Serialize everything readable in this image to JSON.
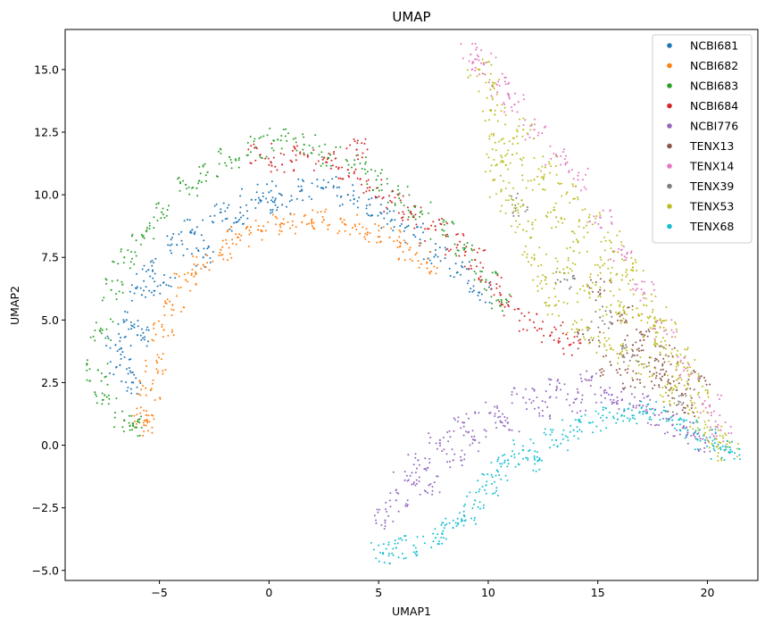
{
  "chart_data": {
    "type": "scatter",
    "title": "UMAP",
    "xlabel": "UMAP1",
    "ylabel": "UMAP2",
    "xlim": [
      -9.3,
      22.3
    ],
    "ylim": [
      -5.4,
      16.6
    ],
    "xticks": [
      -5,
      0,
      5,
      10,
      15,
      20
    ],
    "yticks": [
      -5.0,
      -2.5,
      0.0,
      2.5,
      5.0,
      7.5,
      10.0,
      12.5,
      15.0
    ],
    "xtick_labels": [
      "−5",
      "0",
      "5",
      "10",
      "15",
      "20"
    ],
    "ytick_labels": [
      "−5.0",
      "−2.5",
      "0.0",
      "2.5",
      "5.0",
      "7.5",
      "10.0",
      "12.5",
      "15.0"
    ],
    "grid": false,
    "legend_position": "top-right",
    "series": [
      {
        "name": "NCBI681",
        "color": "#1f77b4",
        "points": [
          [
            -7.0,
            4.0
          ],
          [
            -6.5,
            5.0
          ],
          [
            -6.2,
            2.5
          ],
          [
            -5.8,
            6.0
          ],
          [
            -5.5,
            7.0
          ],
          [
            -4.8,
            6.5
          ],
          [
            -4.2,
            8.0
          ],
          [
            -3.5,
            8.6
          ],
          [
            -3.0,
            7.5
          ],
          [
            -2.2,
            9.3
          ],
          [
            -1.5,
            8.9
          ],
          [
            -0.8,
            9.8
          ],
          [
            0.0,
            10.1
          ],
          [
            0.6,
            9.6
          ],
          [
            1.5,
            10.2
          ],
          [
            2.6,
            10.3
          ],
          [
            3.6,
            10.0
          ],
          [
            4.6,
            9.6
          ],
          [
            5.6,
            9.0
          ],
          [
            6.6,
            8.4
          ],
          [
            7.6,
            7.6
          ],
          [
            8.6,
            6.9
          ],
          [
            9.6,
            6.1
          ],
          [
            -6.8,
            3.2
          ],
          [
            -6.0,
            4.4
          ]
        ]
      },
      {
        "name": "NCBI682",
        "color": "#ff7f0e",
        "points": [
          [
            -5.6,
            1.2
          ],
          [
            -5.4,
            2.2
          ],
          [
            -5.1,
            3.3
          ],
          [
            -4.8,
            4.6
          ],
          [
            -4.4,
            5.6
          ],
          [
            -3.8,
            6.6
          ],
          [
            -3.0,
            7.2
          ],
          [
            -2.2,
            7.8
          ],
          [
            -1.4,
            8.3
          ],
          [
            -0.5,
            8.6
          ],
          [
            0.5,
            8.8
          ],
          [
            1.5,
            8.9
          ],
          [
            2.5,
            9.0
          ],
          [
            3.5,
            8.8
          ],
          [
            4.5,
            8.5
          ],
          [
            5.5,
            8.3
          ],
          [
            6.4,
            7.8
          ],
          [
            7.2,
            7.3
          ],
          [
            -5.7,
            0.8
          ]
        ]
      },
      {
        "name": "NCBI683",
        "color": "#2ca02c",
        "points": [
          [
            -7.8,
            3.0
          ],
          [
            -7.6,
            4.6
          ],
          [
            -7.2,
            6.2
          ],
          [
            -7.5,
            2.0
          ],
          [
            -6.6,
            1.0
          ],
          [
            -6.2,
            0.8
          ],
          [
            -6.6,
            7.5
          ],
          [
            -5.8,
            8.4
          ],
          [
            -4.9,
            9.3
          ],
          [
            -3.8,
            10.4
          ],
          [
            -2.8,
            10.9
          ],
          [
            -1.8,
            11.5
          ],
          [
            -0.6,
            11.9
          ],
          [
            0.4,
            12.2
          ],
          [
            1.6,
            12.0
          ],
          [
            2.8,
            11.6
          ],
          [
            3.9,
            11.2
          ],
          [
            4.9,
            10.6
          ],
          [
            5.9,
            10.0
          ],
          [
            6.9,
            9.3
          ],
          [
            7.9,
            8.6
          ],
          [
            8.9,
            7.8
          ],
          [
            9.9,
            6.6
          ],
          [
            10.6,
            5.8
          ]
        ]
      },
      {
        "name": "NCBI684",
        "color": "#d62728",
        "points": [
          [
            0.6,
            11.2
          ],
          [
            1.6,
            11.6
          ],
          [
            2.6,
            11.3
          ],
          [
            3.6,
            11.0
          ],
          [
            4.6,
            10.3
          ],
          [
            5.6,
            9.7
          ],
          [
            6.6,
            9.1
          ],
          [
            7.6,
            8.6
          ],
          [
            8.6,
            8.0
          ],
          [
            9.4,
            7.4
          ],
          [
            10.1,
            6.4
          ],
          [
            10.9,
            5.6
          ],
          [
            11.9,
            5.0
          ],
          [
            12.9,
            4.5
          ],
          [
            13.7,
            4.0
          ],
          [
            -0.4,
            11.6
          ],
          [
            4.0,
            11.8
          ]
        ]
      },
      {
        "name": "NCBI776",
        "color": "#9467bd",
        "points": [
          [
            5.3,
            -3.0
          ],
          [
            5.8,
            -2.2
          ],
          [
            6.2,
            -1.4
          ],
          [
            6.8,
            -0.6
          ],
          [
            7.3,
            -1.6
          ],
          [
            7.8,
            0.2
          ],
          [
            8.4,
            -0.6
          ],
          [
            8.9,
            0.9
          ],
          [
            9.4,
            0.2
          ],
          [
            10.1,
            1.3
          ],
          [
            10.9,
            0.9
          ],
          [
            11.6,
            1.9
          ],
          [
            12.3,
            1.5
          ],
          [
            13.1,
            2.2
          ],
          [
            13.9,
            1.7
          ],
          [
            14.6,
            2.6
          ],
          [
            15.4,
            2.1
          ],
          [
            16.1,
            1.8
          ],
          [
            16.9,
            1.6
          ],
          [
            17.6,
            1.2
          ],
          [
            18.4,
            0.8
          ],
          [
            19.1,
            0.5
          ],
          [
            19.9,
            0.1
          ]
        ]
      },
      {
        "name": "TENX13",
        "color": "#8c564b",
        "points": [
          [
            14.6,
            4.2
          ],
          [
            15.6,
            3.2
          ],
          [
            16.6,
            2.6
          ],
          [
            17.6,
            3.1
          ],
          [
            18.6,
            2.2
          ],
          [
            19.3,
            1.6
          ],
          [
            17.1,
            4.2
          ],
          [
            16.1,
            5.2
          ],
          [
            18.1,
            3.6
          ],
          [
            15.1,
            6.2
          ],
          [
            19.6,
            2.6
          ],
          [
            16.6,
            4.0
          ],
          [
            17.9,
            2.6
          ]
        ]
      },
      {
        "name": "TENX14",
        "color": "#e377c2",
        "points": [
          [
            9.2,
            15.6
          ],
          [
            9.8,
            15.2
          ],
          [
            10.4,
            14.4
          ],
          [
            11.2,
            13.6
          ],
          [
            12.1,
            12.6
          ],
          [
            13.1,
            11.6
          ],
          [
            14.1,
            10.6
          ],
          [
            15.1,
            9.1
          ],
          [
            16.1,
            7.6
          ],
          [
            17.1,
            6.1
          ],
          [
            18.1,
            4.6
          ],
          [
            19.1,
            3.1
          ],
          [
            20.1,
            1.6
          ],
          [
            20.6,
            0.6
          ]
        ]
      },
      {
        "name": "TENX39",
        "color": "#7f7f7f",
        "points": [
          [
            13.6,
            6.6
          ],
          [
            16.6,
            3.6
          ],
          [
            18.6,
            1.6
          ],
          [
            11.6,
            9.6
          ],
          [
            15.1,
            5.1
          ]
        ]
      },
      {
        "name": "TENX53",
        "color": "#bcbd22",
        "points": [
          [
            9.6,
            15.0
          ],
          [
            10.1,
            14.2
          ],
          [
            10.3,
            13.2
          ],
          [
            10.6,
            12.2
          ],
          [
            10.4,
            11.2
          ],
          [
            10.6,
            10.2
          ],
          [
            11.1,
            11.6
          ],
          [
            11.6,
            12.6
          ],
          [
            11.1,
            9.6
          ],
          [
            11.6,
            8.6
          ],
          [
            12.1,
            10.6
          ],
          [
            12.6,
            11.1
          ],
          [
            12.1,
            7.6
          ],
          [
            12.6,
            6.6
          ],
          [
            13.1,
            9.1
          ],
          [
            13.6,
            10.1
          ],
          [
            13.1,
            5.6
          ],
          [
            13.6,
            7.1
          ],
          [
            14.1,
            8.1
          ],
          [
            14.6,
            9.1
          ],
          [
            14.1,
            4.6
          ],
          [
            14.6,
            6.1
          ],
          [
            15.1,
            7.1
          ],
          [
            15.6,
            8.1
          ],
          [
            15.1,
            4.1
          ],
          [
            15.6,
            5.6
          ],
          [
            16.1,
            6.6
          ],
          [
            16.6,
            7.1
          ],
          [
            16.1,
            3.6
          ],
          [
            16.6,
            5.1
          ],
          [
            17.1,
            5.6
          ],
          [
            17.6,
            5.1
          ],
          [
            17.1,
            3.1
          ],
          [
            17.6,
            4.1
          ],
          [
            18.1,
            4.6
          ],
          [
            18.6,
            3.6
          ],
          [
            18.1,
            2.1
          ],
          [
            18.6,
            2.6
          ],
          [
            19.1,
            3.1
          ],
          [
            19.6,
            2.1
          ],
          [
            19.6,
            1.1
          ],
          [
            20.1,
            0.6
          ],
          [
            20.6,
            0.1
          ],
          [
            21.0,
            -0.3
          ]
        ]
      },
      {
        "name": "TENX68",
        "color": "#17becf",
        "points": [
          [
            5.2,
            -4.3
          ],
          [
            5.8,
            -4.1
          ],
          [
            6.6,
            -4.0
          ],
          [
            7.6,
            -3.7
          ],
          [
            8.4,
            -3.3
          ],
          [
            8.9,
            -2.8
          ],
          [
            9.4,
            -2.2
          ],
          [
            9.9,
            -1.6
          ],
          [
            10.4,
            -1.0
          ],
          [
            10.9,
            -0.6
          ],
          [
            11.6,
            -0.2
          ],
          [
            12.3,
            -0.6
          ],
          [
            13.1,
            0.2
          ],
          [
            13.9,
            0.6
          ],
          [
            14.6,
            0.9
          ],
          [
            15.4,
            1.1
          ],
          [
            16.1,
            1.2
          ],
          [
            16.9,
            1.3
          ],
          [
            17.6,
            1.4
          ],
          [
            18.4,
            1.0
          ],
          [
            19.1,
            0.6
          ],
          [
            19.9,
            0.2
          ],
          [
            20.6,
            -0.1
          ],
          [
            21.0,
            -0.3
          ]
        ]
      }
    ]
  }
}
